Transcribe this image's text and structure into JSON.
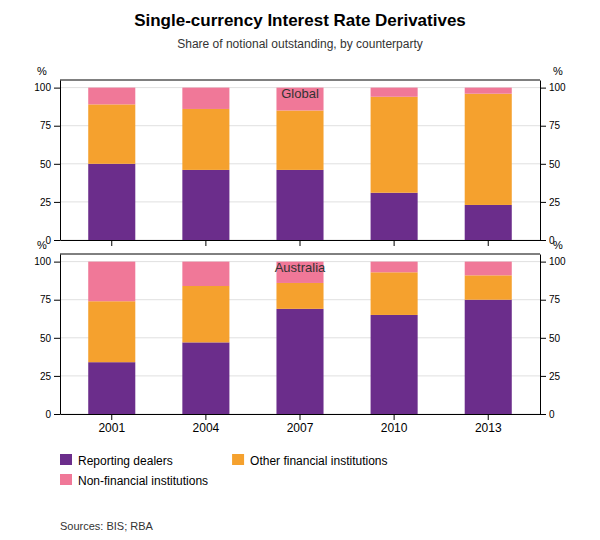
{
  "title": "Single-currency Interest Rate Derivatives",
  "subtitle": "Share of notional outstanding, by counterparty",
  "annotations": [
    "Sources: BIS; RBA"
  ],
  "chart_data": [
    {
      "type": "bar",
      "title": "Global",
      "stacked": true,
      "grid": true,
      "categories": [
        null,
        null,
        null,
        null,
        null
      ],
      "series": [
        {
          "name": "Reporting dealers",
          "color": "#6b2d8b",
          "values": [
            50,
            46,
            46,
            31,
            23
          ]
        },
        {
          "name": "Other financial institutions",
          "color": "#f5a12e",
          "values": [
            39,
            40,
            39,
            63,
            73
          ]
        },
        {
          "name": "Non-financial institutions",
          "color": "#f07898",
          "values": [
            11,
            14,
            15,
            6,
            4
          ]
        }
      ],
      "ylabel": "%",
      "y2label": "%",
      "ylim": [
        0,
        105
      ],
      "yticks": [
        0,
        25,
        50,
        75,
        100
      ],
      "y2lim": [
        0,
        105
      ],
      "y2ticks": [
        0,
        25,
        50,
        75,
        100
      ]
    },
    {
      "type": "bar",
      "title": "Australia",
      "stacked": true,
      "grid": true,
      "legend": "bottom",
      "categories": [
        "2001",
        "2004",
        "2007",
        "2010",
        "2013"
      ],
      "series": [
        {
          "name": "Reporting dealers",
          "color": "#6b2d8b",
          "values": [
            34,
            47,
            69,
            65,
            75
          ]
        },
        {
          "name": "Other financial institutions",
          "color": "#f5a12e",
          "values": [
            40,
            37,
            17,
            28,
            16
          ]
        },
        {
          "name": "Non-financial institutions",
          "color": "#f07898",
          "values": [
            26,
            16,
            14,
            7,
            9
          ]
        }
      ],
      "ylabel": "%",
      "y2label": "%",
      "ylim": [
        0,
        105
      ],
      "yticks": [
        0,
        25,
        50,
        75,
        100
      ],
      "y2lim": [
        0,
        105
      ],
      "y2ticks": [
        0,
        25,
        50,
        75,
        100
      ]
    }
  ]
}
